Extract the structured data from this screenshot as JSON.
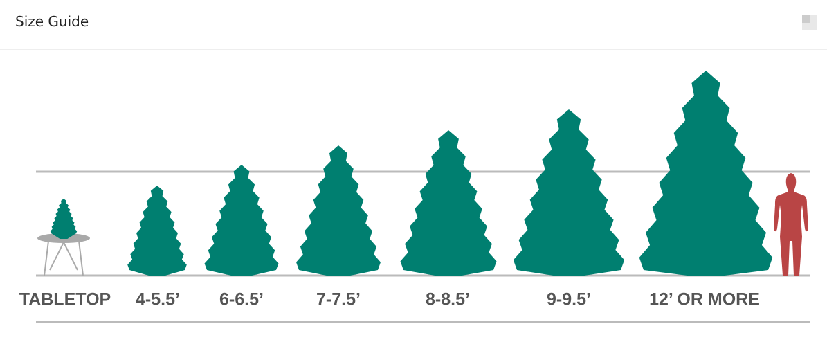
{
  "header": {
    "title": "Size Guide"
  },
  "sizes": [
    "TABLETOP",
    "4-5.5’",
    "6-6.5’",
    "7-7.5’",
    "8-8.5’",
    "9-9.5’",
    "12’ OR MORE"
  ]
}
